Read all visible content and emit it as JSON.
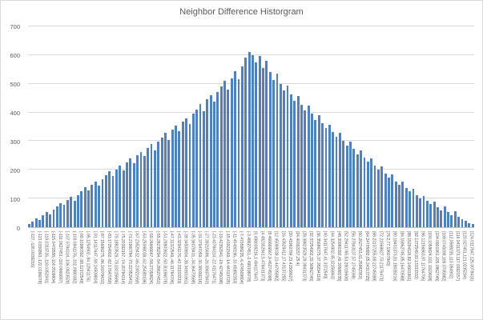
{
  "chart_data": {
    "type": "bar",
    "title": "Neighbor Difference Historgram",
    "xlabel": "",
    "ylabel": "",
    "ylim": [
      0,
      700
    ],
    "yticks": [
      0,
      100,
      200,
      300,
      400,
      500,
      600,
      700
    ],
    "grid": true,
    "legend": "none",
    "bar_color": "#4F81BD",
    "gridline_color": "#d9d9d9",
    "axis_text_color": "#595959",
    "label_every": 2,
    "values": [
      12,
      20,
      30,
      25,
      42,
      52,
      45,
      62,
      72,
      85,
      78,
      95,
      105,
      92,
      112,
      125,
      140,
      128,
      148,
      160,
      145,
      168,
      180,
      195,
      178,
      200,
      215,
      198,
      225,
      240,
      222,
      250,
      262,
      248,
      275,
      290,
      268,
      298,
      312,
      330,
      305,
      340,
      355,
      335,
      368,
      380,
      360,
      395,
      410,
      430,
      405,
      445,
      460,
      438,
      472,
      490,
      510,
      480,
      520,
      545,
      515,
      560,
      590,
      612,
      600,
      575,
      598,
      555,
      580,
      540,
      512,
      535,
      500,
      478,
      495,
      462,
      440,
      458,
      428,
      408,
      425,
      395,
      375,
      390,
      362,
      345,
      358,
      332,
      315,
      328,
      302,
      285,
      298,
      272,
      255,
      268,
      242,
      228,
      240,
      215,
      200,
      212,
      188,
      172,
      185,
      160,
      148,
      158,
      138,
      125,
      135,
      112,
      100,
      110,
      92,
      80,
      90,
      70,
      60,
      72,
      52,
      42,
      55,
      35,
      28,
      22,
      15,
      10
    ],
    "categories": [
      "[-127,-126.0039216]",
      "[-123.0156863,-122.0196078]",
      "[-119.0313726,-118.0352941]",
      "[-115.0470588,-114.0509804]",
      "[-111.0627451,-110.0666667]",
      "[-107.0784314,-106.0823529]",
      "[-103.0941176,-102.0980392]",
      "[-99.10980392,-98.11372549]",
      "[-95.1254902,-94.12941176]",
      "[-91.14117647,-90.14509804]",
      "[-87.15686275,-86.16078431]",
      "[-83.17254902,-82.17647059]",
      "[-79.18823529,-78.19215686]",
      "[-75.20392157,-74.20784314]",
      "[-71.21960784,-70.22352941]",
      "[-67.23529412,-66.23921569]",
      "[-63.25098039,-62.25490196]",
      "[-59.26666667,-58.27058824]",
      "[-55.28235294,-54.28627451]",
      "[-51.29803922,-50.30196078]",
      "[-47.31372549,-46.31764706]",
      "[-43.32941176,-42.33333333]",
      "[-39.34509804,-38.34901961]",
      "[-35.36078431,-34.36470588]",
      "[-31.37647059,-30.38039216]",
      "[-27.39215686,-26.39607843]",
      "[-23.40784314,-22.41176471]",
      "[-19.42352941,-18.42745098]",
      "[-15.43921569,-14.44313725]",
      "[-11.45490196,-10.45882353]",
      "[-7.470588235,-6.474509804]",
      "[-3.48627451,-2.490196078]",
      "[0.498039216,1.494117647]",
      "[4.482352941,5.478431373]",
      "[8.466666667,9.462745098]",
      "[12.45098039,13.44705882]",
      "[16.43529412,17.43137255]",
      "[20.41960784,21.41568627]",
      "[24.40392157,25.4]",
      "[28.38823529,29.38431373]",
      "[32.37254902,33.36862745]",
      "[36.35686275,37.35294118]",
      "[40.34117647,41.3372549]",
      "[44.3254902,45.32156863]",
      "[48.30980392,49.30588235]",
      "[52.29411765,53.29019608]",
      "[56.27843137,57.2745098]",
      "[60.2627451,61.25882353]",
      "[64.24705882,65.24313725]",
      "[68.23137255,69.22745098]",
      "[72.21568627,73.21176471]",
      "[76.2,77.19607843]",
      "[80.18431373,81.18039216]",
      "[84.16862745,85.16470588]",
      "[88.15294118,89.14901961]",
      "[92.1372549,93.13333333]",
      "[96.12156863,97.11764706]",
      "[100.1058824,101.1019608]",
      "[104.0901961,105.0862745]",
      "[108.0745098,109.0705882]",
      "[112.0588235,113.054902]",
      "[116.0431373,117.0392157]",
      "[120.027451,121.0235294]",
      "[124.0117647,125.0078431]"
    ]
  }
}
